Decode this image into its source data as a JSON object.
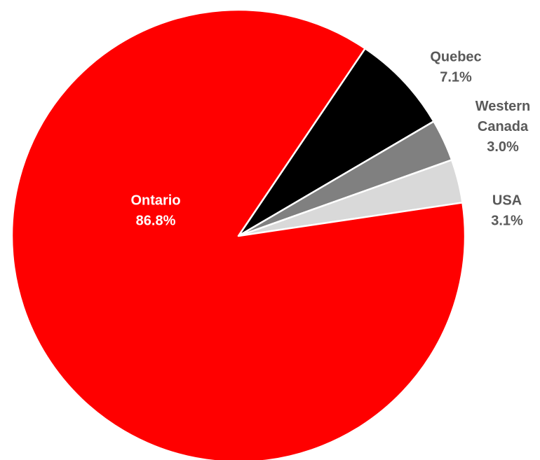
{
  "chart_data": {
    "type": "pie",
    "title": "",
    "slices": [
      {
        "label": "Quebec",
        "value": 7.1,
        "value_label": "7.1%",
        "color": "#000000",
        "label_color": "#595959"
      },
      {
        "label": "Western Canada",
        "value": 3.0,
        "value_label": "3.0%",
        "color": "#808080",
        "label_color": "#595959"
      },
      {
        "label": "USA",
        "value": 3.1,
        "value_label": "3.1%",
        "color": "#d9d9d9",
        "label_color": "#595959"
      },
      {
        "label": "Ontario",
        "value": 86.8,
        "value_label": "86.8%",
        "color": "#ff0000",
        "label_color": "#ffffff"
      }
    ],
    "start_angle_deg": 56,
    "direction": "clockwise",
    "legend": "none",
    "slice_border_color": "#ffffff"
  }
}
